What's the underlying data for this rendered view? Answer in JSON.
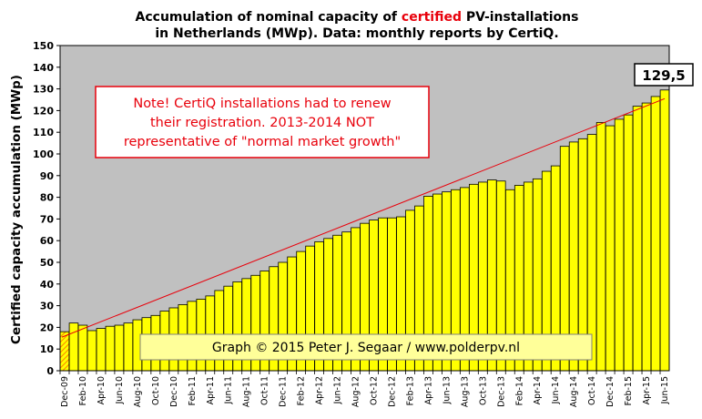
{
  "chart_data": {
    "type": "bar",
    "title_parts": [
      "Accumulation  of nominal  capacity  of ",
      "certified",
      " PV-installations"
    ],
    "title_line2": "in Netherlands (MWp). Data: monthly  reports by CertiQ.",
    "ylabel": "Certified capacity accumulation (MWp)",
    "ylim": [
      0,
      150
    ],
    "yticks": [
      0,
      10,
      20,
      30,
      40,
      50,
      60,
      70,
      80,
      90,
      100,
      110,
      120,
      130,
      140,
      150
    ],
    "x_tick_labels": [
      "Dec-09",
      "Feb-10",
      "Apr-10",
      "Jun-10",
      "Aug-10",
      "Oct-10",
      "Dec-10",
      "Feb-11",
      "Apr-11",
      "Jun-11",
      "Aug-11",
      "Oct-11",
      "Dec-11",
      "Feb-12",
      "Apr-12",
      "Jun-12",
      "Aug-12",
      "Oct-12",
      "Dec-12",
      "Feb-13",
      "Apr-13",
      "Jun-13",
      "Aug-13",
      "Oct-13",
      "Dec-13",
      "Feb-14",
      "Apr-14",
      "Jun-14",
      "Aug-14",
      "Oct-14",
      "Dec-14",
      "Feb-15",
      "Apr-15",
      "Jun-15"
    ],
    "values": [
      18,
      22,
      21,
      18.5,
      19.5,
      20.5,
      21,
      22,
      23.5,
      24.5,
      25.5,
      27.5,
      29,
      30.5,
      32,
      33,
      34.5,
      37,
      39,
      41,
      42.5,
      44,
      46,
      48,
      50,
      52.5,
      55,
      57.5,
      59.5,
      61,
      62.5,
      64,
      66,
      68,
      69.5,
      70.5,
      70.5,
      71,
      74,
      76,
      80.5,
      81.5,
      82.5,
      83.5,
      84.5,
      86,
      87,
      88,
      87.5,
      83.5,
      85.5,
      87,
      88.5,
      92,
      94.5,
      103.5,
      105.5,
      107,
      109,
      114.5,
      113,
      116,
      118,
      122,
      123.5,
      126.5,
      129.5
    ],
    "trend": [
      15.5,
      125.5
    ],
    "grid": false,
    "callout_label": "129,5",
    "note_lines": [
      "Note! CertiQ installations  had to renew",
      "their registration. 2013-2014 NOT",
      "representative of \"normal market growth\""
    ],
    "credit": "Graph © 2015 Peter J. Segaar / www.polderpv.nl",
    "colors": {
      "plot_bg": "#c0c0c0",
      "bar_fill": "#ffff00",
      "bar_stroke": "#000000",
      "first_bar_hatch": "#ff8000",
      "trend_line": "#e8000b",
      "title_accent": "#e8000b",
      "credit_box": "#ffff99"
    }
  }
}
